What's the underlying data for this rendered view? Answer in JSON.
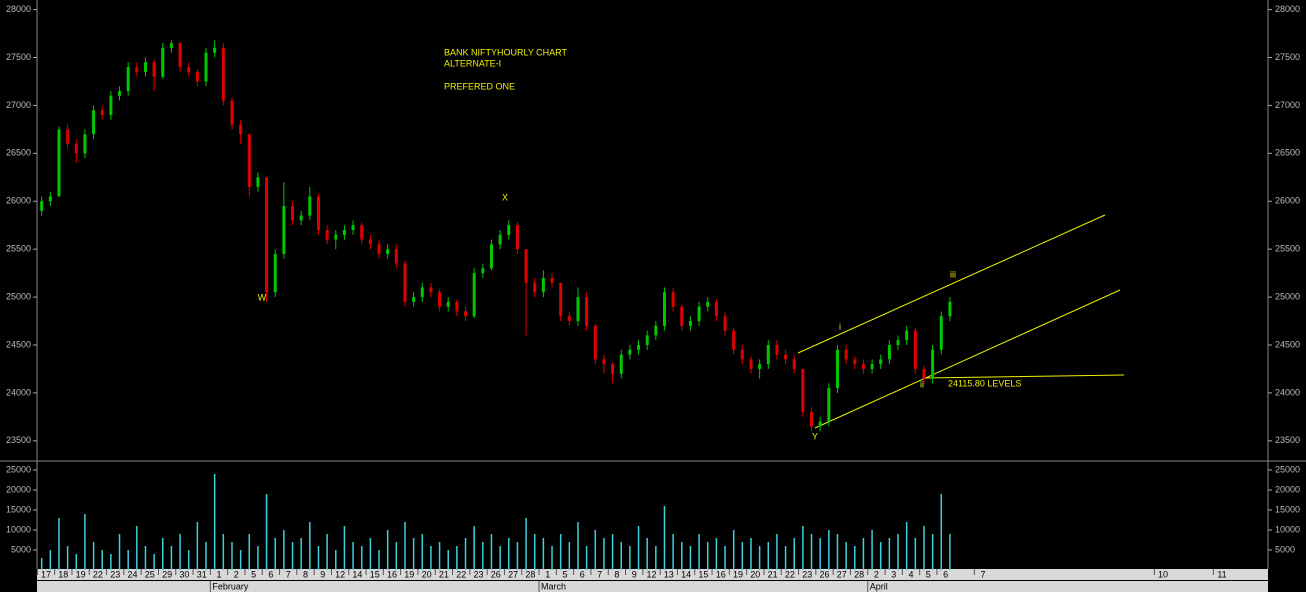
{
  "chart_data": {
    "type": "candlestick",
    "title": "BANK NIFTYHOURLY CHART",
    "subtitle": "ALTERNATE-I",
    "note": "PREFERED ONE",
    "up_color": "#00c800",
    "down_color": "#e00000",
    "volume_color": "#3fd0e0",
    "annotation_color": "#f0f000",
    "ylim": [
      23300,
      28100
    ],
    "yticks": [
      23500,
      24000,
      24500,
      25000,
      25500,
      26000,
      26500,
      27000,
      27500,
      28000
    ],
    "volume_ylim": [
      0,
      27000
    ],
    "volume_ticks": [
      5000,
      10000,
      15000,
      20000,
      25000
    ],
    "months": [
      "February",
      "March",
      "April"
    ],
    "annotations": [
      "W",
      "X",
      "Y",
      "i",
      "ii",
      "iii",
      "24115.80 LEVELS"
    ],
    "days": [
      {
        "day": "17",
        "bars": [
          [
            25900,
            26050,
            25850,
            26000
          ],
          [
            26000,
            26100,
            25950,
            26050
          ]
        ],
        "volume": [
          3000,
          5000
        ]
      },
      {
        "day": "18",
        "bars": [
          [
            26050,
            26780,
            26050,
            26750
          ],
          [
            26750,
            26800,
            26550,
            26600
          ]
        ],
        "volume": [
          13000,
          6000
        ]
      },
      {
        "day": "19",
        "bars": [
          [
            26600,
            26650,
            26400,
            26500
          ],
          [
            26500,
            26750,
            26450,
            26700
          ]
        ],
        "volume": [
          4000,
          14000
        ]
      },
      {
        "day": "22",
        "bars": [
          [
            26700,
            27000,
            26650,
            26950
          ],
          [
            26950,
            27000,
            26850,
            26900
          ]
        ],
        "volume": [
          7000,
          5000
        ]
      },
      {
        "day": "23",
        "bars": [
          [
            26900,
            27150,
            26850,
            27100
          ],
          [
            27100,
            27200,
            27050,
            27150
          ]
        ],
        "volume": [
          4000,
          9000
        ]
      },
      {
        "day": "24",
        "bars": [
          [
            27150,
            27450,
            27100,
            27400
          ],
          [
            27400,
            27450,
            27300,
            27350
          ]
        ],
        "volume": [
          5000,
          11000
        ]
      },
      {
        "day": "25",
        "bars": [
          [
            27350,
            27500,
            27300,
            27450
          ],
          [
            27450,
            27480,
            27150,
            27300
          ]
        ],
        "volume": [
          6000,
          4000
        ]
      },
      {
        "day": "29",
        "bars": [
          [
            27300,
            27650,
            27280,
            27600
          ],
          [
            27600,
            27680,
            27550,
            27650
          ]
        ],
        "volume": [
          8000,
          6000
        ]
      },
      {
        "day": "30",
        "bars": [
          [
            27650,
            27660,
            27350,
            27400
          ],
          [
            27400,
            27450,
            27300,
            27350
          ]
        ],
        "volume": [
          9000,
          5000
        ]
      },
      {
        "day": "31",
        "bars": [
          [
            27350,
            27380,
            27200,
            27250
          ],
          [
            27250,
            27600,
            27200,
            27550
          ]
        ],
        "volume": [
          12000,
          7000
        ]
      },
      {
        "day": "1",
        "bars": [
          [
            27550,
            27680,
            27500,
            27600
          ],
          [
            27600,
            27650,
            27000,
            27050
          ]
        ],
        "volume": [
          24000,
          9000
        ]
      },
      {
        "day": "2",
        "bars": [
          [
            27050,
            27080,
            26750,
            26800
          ],
          [
            26800,
            26850,
            26600,
            26700
          ]
        ],
        "volume": [
          7000,
          5000
        ]
      },
      {
        "day": "5",
        "bars": [
          [
            26700,
            26700,
            26050,
            26150
          ],
          [
            26150,
            26300,
            26100,
            26250
          ]
        ],
        "volume": [
          9000,
          6000
        ]
      },
      {
        "day": "6",
        "bars": [
          [
            26250,
            26250,
            24950,
            25050
          ],
          [
            25050,
            25500,
            25000,
            25450
          ]
        ],
        "volume": [
          19000,
          8000
        ]
      },
      {
        "day": "7",
        "bars": [
          [
            25450,
            26200,
            25400,
            25950
          ],
          [
            25950,
            26000,
            25750,
            25800
          ]
        ],
        "volume": [
          10000,
          7000
        ]
      },
      {
        "day": "8",
        "bars": [
          [
            25800,
            25900,
            25750,
            25850
          ],
          [
            25850,
            26150,
            25800,
            26050
          ]
        ],
        "volume": [
          8000,
          12000
        ]
      },
      {
        "day": "9",
        "bars": [
          [
            26050,
            26080,
            25650,
            25700
          ],
          [
            25700,
            25750,
            25550,
            25600
          ]
        ],
        "volume": [
          6000,
          9000
        ]
      },
      {
        "day": "12",
        "bars": [
          [
            25600,
            25700,
            25500,
            25650
          ],
          [
            25650,
            25750,
            25600,
            25700
          ]
        ],
        "volume": [
          5000,
          11000
        ]
      },
      {
        "day": "14",
        "bars": [
          [
            25700,
            25800,
            25650,
            25750
          ],
          [
            25750,
            25780,
            25550,
            25600
          ]
        ],
        "volume": [
          7000,
          6000
        ]
      },
      {
        "day": "15",
        "bars": [
          [
            25600,
            25650,
            25500,
            25550
          ],
          [
            25550,
            25600,
            25400,
            25450
          ]
        ],
        "volume": [
          8000,
          5000
        ]
      },
      {
        "day": "16",
        "bars": [
          [
            25450,
            25550,
            25400,
            25500
          ],
          [
            25500,
            25550,
            25300,
            25350
          ]
        ],
        "volume": [
          10000,
          7000
        ]
      },
      {
        "day": "19",
        "bars": [
          [
            25350,
            25380,
            24900,
            24950
          ],
          [
            24950,
            25050,
            24900,
            25000
          ]
        ],
        "volume": [
          12000,
          8000
        ]
      },
      {
        "day": "20",
        "bars": [
          [
            25000,
            25150,
            24950,
            25100
          ],
          [
            25100,
            25150,
            25000,
            25050
          ]
        ],
        "volume": [
          9000,
          6000
        ]
      },
      {
        "day": "21",
        "bars": [
          [
            25050,
            25080,
            24850,
            24900
          ],
          [
            24900,
            25000,
            24850,
            24950
          ]
        ],
        "volume": [
          7000,
          5000
        ]
      },
      {
        "day": "22",
        "bars": [
          [
            24950,
            24980,
            24800,
            24850
          ],
          [
            24850,
            24900,
            24750,
            24800
          ]
        ],
        "volume": [
          6000,
          8000
        ]
      },
      {
        "day": "23",
        "bars": [
          [
            24800,
            25300,
            24780,
            25250
          ],
          [
            25250,
            25350,
            25200,
            25300
          ]
        ],
        "volume": [
          11000,
          7000
        ]
      },
      {
        "day": "26",
        "bars": [
          [
            25300,
            25600,
            25280,
            25550
          ],
          [
            25550,
            25700,
            25500,
            25650
          ]
        ],
        "volume": [
          9000,
          6000
        ]
      },
      {
        "day": "27",
        "bars": [
          [
            25650,
            25800,
            25600,
            25750
          ],
          [
            25750,
            25780,
            25450,
            25500
          ]
        ],
        "volume": [
          8000,
          7000
        ]
      },
      {
        "day": "28",
        "bars": [
          [
            25500,
            25500,
            24600,
            25150
          ],
          [
            25150,
            25200,
            25000,
            25050
          ]
        ],
        "volume": [
          13000,
          9000
        ]
      },
      {
        "day": "1",
        "bars": [
          [
            25050,
            25280,
            25000,
            25200
          ],
          [
            25200,
            25250,
            25100,
            25150
          ]
        ],
        "volume": [
          8000,
          6000
        ]
      },
      {
        "day": "5",
        "bars": [
          [
            25150,
            25150,
            24750,
            24800
          ],
          [
            24800,
            24850,
            24700,
            24750
          ]
        ],
        "volume": [
          9000,
          7000
        ]
      },
      {
        "day": "6",
        "bars": [
          [
            24750,
            25100,
            24700,
            25000
          ],
          [
            25000,
            25050,
            24650,
            24700
          ]
        ],
        "volume": [
          12000,
          6000
        ]
      },
      {
        "day": "7",
        "bars": [
          [
            24700,
            24720,
            24300,
            24350
          ],
          [
            24350,
            24400,
            24200,
            24300
          ]
        ],
        "volume": [
          10000,
          8000
        ]
      },
      {
        "day": "8",
        "bars": [
          [
            24300,
            24320,
            24100,
            24200
          ],
          [
            24200,
            24450,
            24150,
            24400
          ]
        ],
        "volume": [
          9000,
          7000
        ]
      },
      {
        "day": "9",
        "bars": [
          [
            24400,
            24500,
            24350,
            24450
          ],
          [
            24450,
            24550,
            24400,
            24500
          ]
        ],
        "volume": [
          6000,
          11000
        ]
      },
      {
        "day": "12",
        "bars": [
          [
            24500,
            24650,
            24450,
            24600
          ],
          [
            24600,
            24750,
            24550,
            24700
          ]
        ],
        "volume": [
          8000,
          6000
        ]
      },
      {
        "day": "13",
        "bars": [
          [
            24700,
            25100,
            24650,
            25050
          ],
          [
            25050,
            25100,
            24850,
            24900
          ]
        ],
        "volume": [
          16000,
          9000
        ]
      },
      {
        "day": "14",
        "bars": [
          [
            24900,
            24920,
            24650,
            24700
          ],
          [
            24700,
            24800,
            24650,
            24750
          ]
        ],
        "volume": [
          7000,
          6000
        ]
      },
      {
        "day": "15",
        "bars": [
          [
            24750,
            24950,
            24700,
            24900
          ],
          [
            24900,
            25000,
            24850,
            24950
          ]
        ],
        "volume": [
          9000,
          7000
        ]
      },
      {
        "day": "16",
        "bars": [
          [
            24950,
            24980,
            24750,
            24800
          ],
          [
            24800,
            24850,
            24600,
            24650
          ]
        ],
        "volume": [
          8000,
          6000
        ]
      },
      {
        "day": "19",
        "bars": [
          [
            24650,
            24680,
            24400,
            24450
          ],
          [
            24450,
            24500,
            24300,
            24350
          ]
        ],
        "volume": [
          10000,
          7000
        ]
      },
      {
        "day": "20",
        "bars": [
          [
            24350,
            24380,
            24200,
            24250
          ],
          [
            24250,
            24350,
            24150,
            24300
          ]
        ],
        "volume": [
          8000,
          6000
        ]
      },
      {
        "day": "21",
        "bars": [
          [
            24300,
            24550,
            24250,
            24500
          ],
          [
            24500,
            24550,
            24350,
            24400
          ]
        ],
        "volume": [
          7000,
          9000
        ]
      },
      {
        "day": "22",
        "bars": [
          [
            24400,
            24450,
            24300,
            24350
          ],
          [
            24350,
            24400,
            24200,
            24250
          ]
        ],
        "volume": [
          6000,
          8000
        ]
      },
      {
        "day": "23",
        "bars": [
          [
            24250,
            24250,
            23750,
            23800
          ],
          [
            23800,
            23850,
            23600,
            23650
          ]
        ],
        "volume": [
          11000,
          9000
        ]
      },
      {
        "day": "26",
        "bars": [
          [
            23650,
            23750,
            23600,
            23700
          ],
          [
            23700,
            24100,
            23650,
            24050
          ]
        ],
        "volume": [
          8000,
          10000
        ]
      },
      {
        "day": "27",
        "bars": [
          [
            24050,
            24500,
            24000,
            24450
          ],
          [
            24450,
            24500,
            24300,
            24350
          ]
        ],
        "volume": [
          9000,
          7000
        ]
      },
      {
        "day": "28",
        "bars": [
          [
            24350,
            24380,
            24250,
            24300
          ],
          [
            24300,
            24350,
            24200,
            24250
          ]
        ],
        "volume": [
          6000,
          8000
        ]
      },
      {
        "day": "2",
        "bars": [
          [
            24250,
            24350,
            24200,
            24300
          ],
          [
            24300,
            24400,
            24250,
            24350
          ]
        ],
        "volume": [
          10000,
          7000
        ]
      },
      {
        "day": "3",
        "bars": [
          [
            24350,
            24550,
            24300,
            24500
          ],
          [
            24500,
            24600,
            24450,
            24550
          ]
        ],
        "volume": [
          8000,
          9000
        ]
      },
      {
        "day": "4",
        "bars": [
          [
            24550,
            24700,
            24500,
            24650
          ],
          [
            24650,
            24680,
            24200,
            24250
          ]
        ],
        "volume": [
          12000,
          8000
        ]
      },
      {
        "day": "5",
        "bars": [
          [
            24250,
            24280,
            24100,
            24150
          ],
          [
            24150,
            24500,
            24100,
            24450
          ]
        ],
        "volume": [
          11000,
          9000
        ]
      },
      {
        "day": "6",
        "bars": [
          [
            24450,
            24850,
            24400,
            24800
          ],
          [
            24800,
            25000,
            24750,
            24950
          ]
        ],
        "volume": [
          19000,
          9000
        ]
      },
      {
        "day": "7"
      },
      {
        "day": "10"
      },
      {
        "day": "11"
      }
    ]
  }
}
